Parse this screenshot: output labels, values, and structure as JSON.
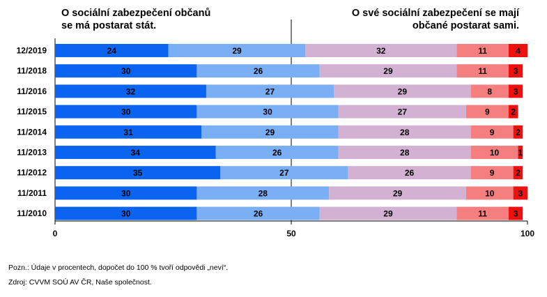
{
  "header": {
    "left_lines": [
      "O sociální zabezpečení občanů",
      "se má postarat stát."
    ],
    "right_lines": [
      "O své sociální zabezpečení se mají",
      "občané postarat sami."
    ]
  },
  "notes": {
    "note1": "Pozn.: Údaje v procentech, dopočet do 100 % tvoří odpovědi „neví“.",
    "note2": "Zdroj: CVVM SOÚ AV ČR, Naše společnost."
  },
  "chart_data": {
    "type": "bar",
    "orientation": "horizontal",
    "stacked": true,
    "categories": [
      "12/2019",
      "11/2018",
      "11/2016",
      "11/2015",
      "11/2014",
      "11/2013",
      "11/2012",
      "11/2011",
      "11/2010"
    ],
    "series": [
      {
        "values": [
          24,
          30,
          32,
          30,
          31,
          34,
          35,
          30,
          30
        ],
        "color": "#0a64f0"
      },
      {
        "values": [
          29,
          26,
          27,
          30,
          29,
          26,
          27,
          28,
          26
        ],
        "color": "#7aaef5"
      },
      {
        "values": [
          32,
          29,
          29,
          27,
          28,
          28,
          26,
          29,
          29
        ],
        "color": "#d2b1d3"
      },
      {
        "values": [
          11,
          11,
          8,
          9,
          9,
          10,
          9,
          10,
          11
        ],
        "color": "#f57f7f"
      },
      {
        "values": [
          4,
          3,
          3,
          2,
          2,
          1,
          2,
          3,
          3
        ],
        "color": "#ee0f0f"
      }
    ],
    "xlim": [
      0,
      100
    ],
    "xticks": [
      "0",
      "50",
      "100"
    ],
    "reference_line": 50,
    "grid": false,
    "legend": "none"
  }
}
